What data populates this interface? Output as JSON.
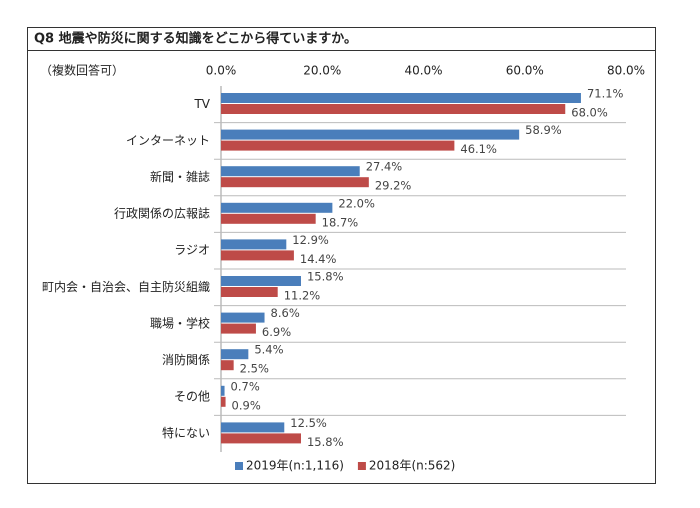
{
  "chart_data": {
    "type": "hbar",
    "title": "Q8 地震や防災に関する知識をどこから得ていますか。",
    "subtitle": "（複数回答可）",
    "categories": [
      "TV",
      "インターネット",
      "新聞・雑誌",
      "行政関係の広報誌",
      "ラジオ",
      "町内会・自治会、自主防災組織",
      "職場・学校",
      "消防関係",
      "その他",
      "特にない"
    ],
    "series": [
      {
        "name": "2019年(n:1,116)",
        "color": "#4a7ebb",
        "values": [
          71.1,
          58.9,
          27.4,
          22.0,
          12.9,
          15.8,
          8.6,
          5.4,
          0.7,
          12.5
        ],
        "value_labels": [
          "71.1%",
          "58.9%",
          "27.4%",
          "22.0%",
          "12.9%",
          "15.8%",
          "8.6%",
          "5.4%",
          "0.7%",
          "12.5%"
        ]
      },
      {
        "name": "2018年(n:562)",
        "color": "#be4b48",
        "values": [
          68.0,
          46.1,
          29.2,
          18.7,
          14.4,
          11.2,
          6.9,
          2.5,
          0.9,
          15.8
        ],
        "value_labels": [
          "68.0%",
          "46.1%",
          "29.2%",
          "18.7%",
          "14.4%",
          "11.2%",
          "6.9%",
          "2.5%",
          "0.9%",
          "15.8%"
        ]
      }
    ],
    "xlim": [
      0,
      80
    ],
    "xticks": [
      {
        "value": 0,
        "label": "0.0%"
      },
      {
        "value": 20,
        "label": "20.0%"
      },
      {
        "value": 40,
        "label": "40.0%"
      },
      {
        "value": 60,
        "label": "60.0%"
      },
      {
        "value": 80,
        "label": "80.0%"
      }
    ],
    "legend": "bottom"
  }
}
